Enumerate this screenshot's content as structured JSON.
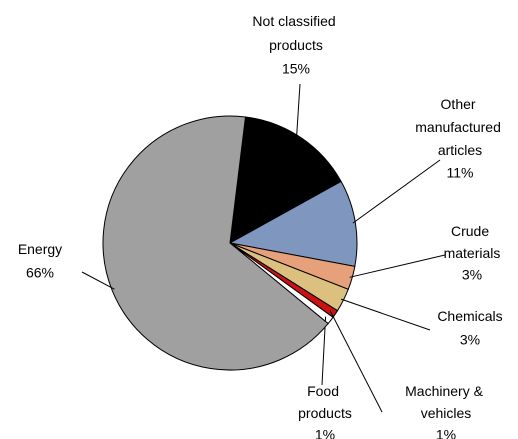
{
  "chart_data": {
    "type": "pie",
    "categories": [
      "Not classified products",
      "Other manufactured articles",
      "Crude materials",
      "Chemicals",
      "Machinery & vehicles",
      "Food products",
      "Energy"
    ],
    "values": [
      15,
      11,
      3,
      3,
      1,
      1,
      66
    ],
    "value_labels": [
      "15%",
      "11%",
      "3%",
      "3%",
      "1%",
      "1%",
      "66%"
    ],
    "colors": [
      "#000000",
      "#7f96bf",
      "#e6a07a",
      "#dcc080",
      "#cc1111",
      "#ffffff",
      "#a0a0a0"
    ]
  }
}
